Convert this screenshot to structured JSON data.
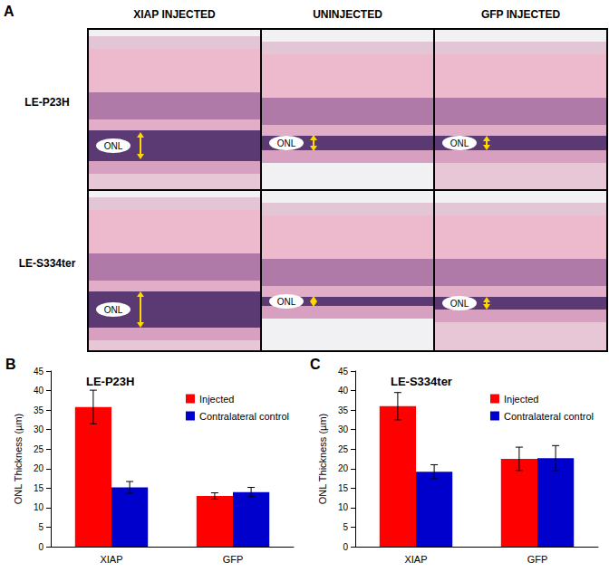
{
  "chart_data": [
    {
      "type": "bar",
      "panel": "B",
      "title": "LE-P23H",
      "categories": [
        "XIAP",
        "GFP"
      ],
      "y_label": "ONL Thickness (µm)",
      "series": [
        {
          "name": "Injected",
          "color": "#ff0000",
          "values": [
            35.8,
            13.0
          ],
          "errors": [
            4.3,
            0.8
          ]
        },
        {
          "name": "Contralateral control",
          "color": "#0000cc",
          "values": [
            15.2,
            14.0
          ],
          "errors": [
            1.5,
            1.2
          ]
        }
      ],
      "ylim": [
        0,
        45
      ],
      "yticks": [
        0,
        5,
        10,
        15,
        20,
        25,
        30,
        35,
        40,
        45
      ],
      "legend": "upper right"
    },
    {
      "type": "bar",
      "panel": "C",
      "title": "LE-S334ter",
      "categories": [
        "XIAP",
        "GFP"
      ],
      "y_label": "ONL Thickness (µm)",
      "series": [
        {
          "name": "Injected",
          "color": "#ff0000",
          "values": [
            36.0,
            22.5
          ],
          "errors": [
            3.5,
            3.0
          ]
        },
        {
          "name": "Contralateral control",
          "color": "#0000cc",
          "values": [
            19.2,
            22.7
          ],
          "errors": [
            1.8,
            3.2
          ]
        }
      ],
      "ylim": [
        0,
        45
      ],
      "yticks": [
        0,
        5,
        10,
        15,
        20,
        25,
        30,
        35,
        40,
        45
      ],
      "legend": "upper right"
    }
  ],
  "panel_a": {
    "panel": "A",
    "columns": [
      "XIAP INJECTED",
      "UNINJECTED",
      "GFP INJECTED"
    ],
    "rows": [
      "LE-P23H",
      "LE-S334ter"
    ],
    "cell_label": "ONL"
  }
}
